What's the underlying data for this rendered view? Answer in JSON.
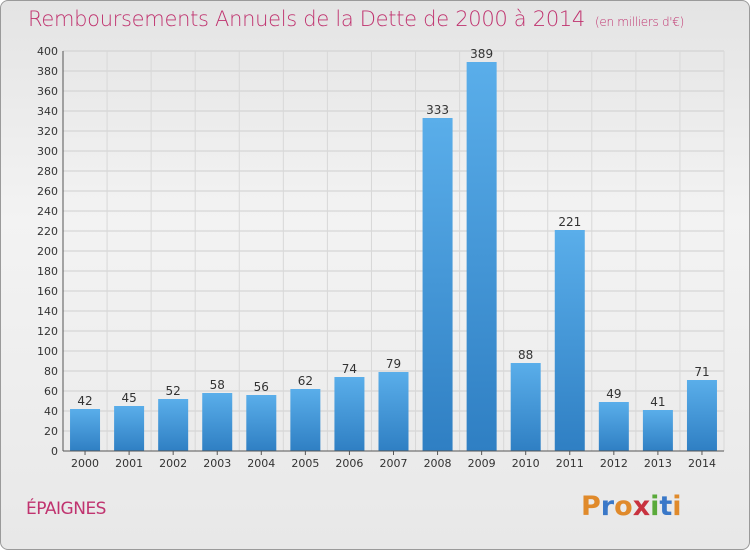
{
  "chart_data": {
    "type": "bar",
    "title": "Remboursements Annuels de la Dette de 2000 à 2014",
    "subtitle": "(en milliers d'€)",
    "categories": [
      "2000",
      "2001",
      "2002",
      "2003",
      "2004",
      "2005",
      "2006",
      "2007",
      "2008",
      "2009",
      "2010",
      "2011",
      "2012",
      "2013",
      "2014"
    ],
    "values": [
      42,
      45,
      52,
      58,
      56,
      62,
      74,
      79,
      333,
      389,
      88,
      221,
      49,
      41,
      71
    ],
    "ylim": [
      0,
      400
    ],
    "ytick_step": 20,
    "grid": true,
    "bar_color": "#3f95d8"
  },
  "footer": {
    "commune": "ÉPAIGNES",
    "logo": [
      "P",
      "r",
      "o",
      "x",
      "i",
      "t",
      "i"
    ],
    "logo_colors": [
      "#e08a2b",
      "#3a78c8",
      "#e08a2b",
      "#c8323f",
      "#5aaa3a",
      "#3a78c8",
      "#e08a2b"
    ]
  }
}
